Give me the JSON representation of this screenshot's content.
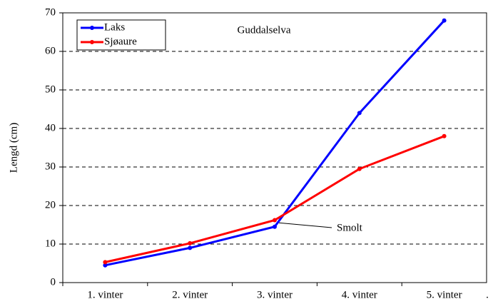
{
  "chart_data": {
    "type": "line",
    "title": "Guddalselva",
    "y_label": "Lengd (cm)",
    "categories": [
      "1. vinter",
      "2. vinter",
      "3. vinter",
      "4. vinter",
      "5. vinter"
    ],
    "x_axis_end_text": ".",
    "series": [
      {
        "name": "Laks",
        "color": "#0000ff",
        "values": [
          4.5,
          9,
          14.5,
          44,
          68
        ]
      },
      {
        "name": "Sjøaure",
        "color": "#ff0000",
        "values": [
          5.3,
          10.2,
          16.2,
          29.5,
          38
        ]
      }
    ],
    "annotation": "Smolt",
    "ylim": [
      0,
      70
    ],
    "yticks": [
      0,
      10,
      20,
      30,
      40,
      50,
      60,
      70
    ],
    "grid": true,
    "legend": "upper left"
  }
}
